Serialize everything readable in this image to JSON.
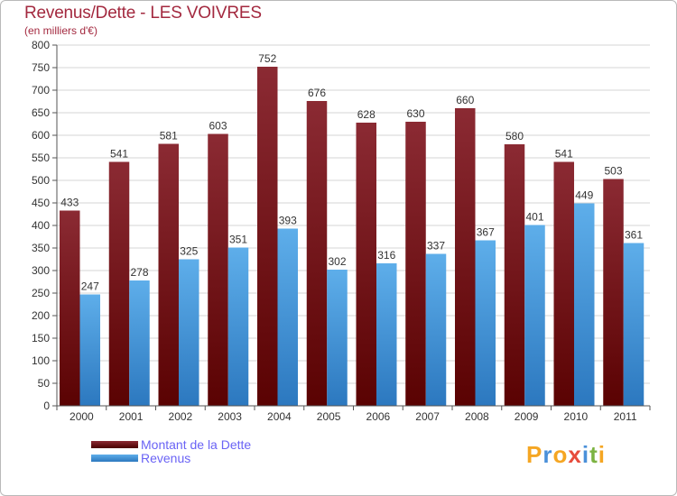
{
  "title": "Revenus/Dette - LES VOIVRES",
  "subtitle": "(en milliers d'€)",
  "chart_data": {
    "type": "bar",
    "categories": [
      "2000",
      "2001",
      "2002",
      "2003",
      "2004",
      "2005",
      "2006",
      "2007",
      "2008",
      "2009",
      "2010",
      "2011"
    ],
    "series": [
      {
        "name": "Montant de la Dette",
        "values": [
          433,
          541,
          581,
          603,
          752,
          676,
          628,
          630,
          660,
          580,
          541,
          503
        ],
        "color_top": "#8b2a33",
        "color_bottom": "#5a0202"
      },
      {
        "name": "Revenus",
        "values": [
          247,
          278,
          325,
          351,
          393,
          302,
          316,
          337,
          367,
          401,
          449,
          361
        ],
        "color_top": "#5eaeea",
        "color_bottom": "#2c78bf"
      }
    ],
    "ylim": [
      0,
      800
    ],
    "yticks": [
      0,
      50,
      100,
      150,
      200,
      250,
      300,
      350,
      400,
      450,
      500,
      550,
      600,
      650,
      700,
      750,
      800
    ],
    "grid": true,
    "legend_position": "bottom-left"
  },
  "logo": {
    "letters": [
      "P",
      "r",
      "o",
      "x",
      "i",
      "t",
      "i"
    ],
    "colors": [
      "#f5a623",
      "#4a90d9",
      "#f5a623",
      "#e74c3c",
      "#4a90d9",
      "#7cb342",
      "#f5a623"
    ]
  }
}
